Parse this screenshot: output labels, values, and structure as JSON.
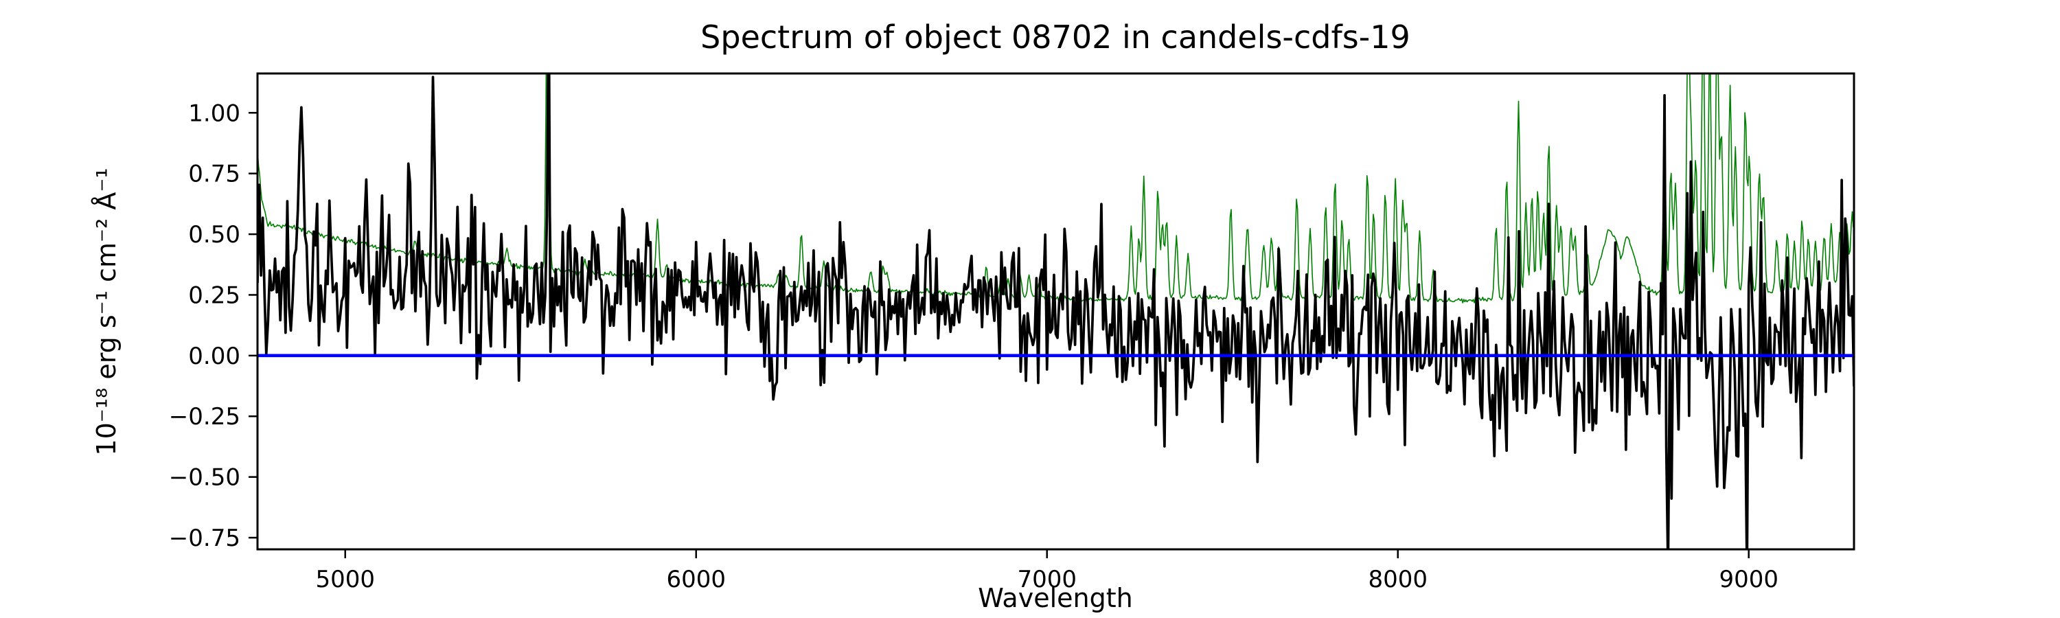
{
  "figure": {
    "background": "#ffffff"
  },
  "chart_data": {
    "type": "line",
    "title": "Spectrum of object 08702 in candels-cdfs-19",
    "xlabel": "Wavelength",
    "ylabel": "10⁻¹⁸ erg s⁻¹ cm⁻² Å⁻¹",
    "xlim": [
      4750,
      9300
    ],
    "ylim": [
      -0.798,
      1.162
    ],
    "xticks": [
      5000,
      6000,
      7000,
      8000,
      9000
    ],
    "xtick_labels": [
      "5000",
      "6000",
      "7000",
      "8000",
      "9000"
    ],
    "yticks": [
      -0.75,
      -0.5,
      -0.25,
      0.0,
      0.25,
      0.5,
      0.75,
      1.0
    ],
    "ytick_labels": [
      "−0.75",
      "−0.50",
      "−0.25",
      "0.00",
      "0.25",
      "0.50",
      "0.75",
      "1.00"
    ],
    "grid": false,
    "legend": null,
    "frame_color": "#000000",
    "background": "#ffffff",
    "series": [
      {
        "name": "sky-noise-spectrum",
        "kind": "sky-spectrum",
        "z": 1,
        "color": "#008000",
        "linewidth": 1.6,
        "sample_step": 3,
        "seed": 4102,
        "texture_noise": 0.005,
        "continuum": [
          [
            4750,
            0.84
          ],
          [
            4762,
            0.64
          ],
          [
            4780,
            0.54
          ],
          [
            4850,
            0.53
          ],
          [
            4950,
            0.49
          ],
          [
            5050,
            0.46
          ],
          [
            5150,
            0.43
          ],
          [
            5250,
            0.41
          ],
          [
            5350,
            0.39
          ],
          [
            5450,
            0.375
          ],
          [
            5550,
            0.36
          ],
          [
            5650,
            0.345
          ],
          [
            5750,
            0.335
          ],
          [
            5850,
            0.33
          ],
          [
            5950,
            0.315
          ],
          [
            6050,
            0.3
          ],
          [
            6150,
            0.29
          ],
          [
            6250,
            0.285
          ],
          [
            6350,
            0.28
          ],
          [
            6450,
            0.27
          ],
          [
            6550,
            0.265
          ],
          [
            6650,
            0.26
          ],
          [
            6750,
            0.255
          ],
          [
            6850,
            0.245
          ],
          [
            6950,
            0.24
          ],
          [
            7050,
            0.235
          ],
          [
            7150,
            0.23
          ],
          [
            7250,
            0.235
          ],
          [
            7350,
            0.24
          ],
          [
            7450,
            0.24
          ],
          [
            7550,
            0.235
          ],
          [
            7650,
            0.235
          ],
          [
            7750,
            0.24
          ],
          [
            7850,
            0.24
          ],
          [
            7950,
            0.235
          ],
          [
            8050,
            0.23
          ],
          [
            8150,
            0.225
          ],
          [
            8250,
            0.23
          ],
          [
            8350,
            0.235
          ],
          [
            8450,
            0.24
          ],
          [
            8520,
            0.255
          ],
          [
            8560,
            0.3
          ],
          [
            8600,
            0.52
          ],
          [
            8622,
            0.48
          ],
          [
            8636,
            0.4
          ],
          [
            8652,
            0.5
          ],
          [
            8668,
            0.44
          ],
          [
            8695,
            0.29
          ],
          [
            8725,
            0.26
          ],
          [
            8800,
            0.26
          ],
          [
            8900,
            0.27
          ],
          [
            9000,
            0.265
          ],
          [
            9100,
            0.26
          ],
          [
            9200,
            0.265
          ],
          [
            9300,
            0.34
          ]
        ],
        "emission_lines": [
          [
            5199,
            0.05,
            4
          ],
          [
            5461,
            0.07,
            4
          ],
          [
            5577,
            1.45,
            4
          ],
          [
            5683,
            0.05,
            4
          ],
          [
            5890,
            0.24,
            4
          ],
          [
            5917,
            0.06,
            4
          ],
          [
            6235,
            0.05,
            4
          ],
          [
            6257,
            0.05,
            4
          ],
          [
            6300,
            0.22,
            4
          ],
          [
            6364,
            0.12,
            4
          ],
          [
            6498,
            0.08,
            4
          ],
          [
            6533,
            0.1,
            4
          ],
          [
            6544,
            0.08,
            4
          ],
          [
            6827,
            0.12,
            4
          ],
          [
            6871,
            0.1,
            4
          ],
          [
            6889,
            0.08,
            4
          ],
          [
            6923,
            0.1,
            4
          ],
          [
            6949,
            0.09,
            4
          ],
          [
            6978,
            0.07,
            4
          ],
          [
            7240,
            0.3,
            4
          ],
          [
            7262,
            0.25,
            4
          ],
          [
            7276,
            0.5,
            4
          ],
          [
            7316,
            0.45,
            4
          ],
          [
            7329,
            0.3,
            4
          ],
          [
            7341,
            0.32,
            4
          ],
          [
            7369,
            0.25,
            4
          ],
          [
            7402,
            0.18,
            4
          ],
          [
            7524,
            0.38,
            4
          ],
          [
            7571,
            0.3,
            5
          ],
          [
            7618,
            0.22,
            5
          ],
          [
            7640,
            0.25,
            5
          ],
          [
            7661,
            0.22,
            4
          ],
          [
            7712,
            0.42,
            4
          ],
          [
            7750,
            0.28,
            4
          ],
          [
            7794,
            0.38,
            4
          ],
          [
            7821,
            0.48,
            4
          ],
          [
            7841,
            0.32,
            4
          ],
          [
            7860,
            0.25,
            4
          ],
          [
            7913,
            0.52,
            4
          ],
          [
            7931,
            0.35,
            4
          ],
          [
            7964,
            0.45,
            4
          ],
          [
            7993,
            0.5,
            4
          ],
          [
            8014,
            0.4,
            4
          ],
          [
            8025,
            0.32,
            4
          ],
          [
            8062,
            0.28,
            4
          ],
          [
            8101,
            0.12,
            4
          ],
          [
            8280,
            0.3,
            4
          ],
          [
            8310,
            0.5,
            4
          ],
          [
            8344,
            0.82,
            4
          ],
          [
            8365,
            0.4,
            4
          ],
          [
            8382,
            0.42,
            4
          ],
          [
            8399,
            0.45,
            4
          ],
          [
            8415,
            0.35,
            4
          ],
          [
            8430,
            0.65,
            4
          ],
          [
            8452,
            0.38,
            4
          ],
          [
            8465,
            0.3,
            4
          ],
          [
            8493,
            0.28,
            4
          ],
          [
            8505,
            0.24,
            4
          ],
          [
            8540,
            0.15,
            4
          ],
          [
            8760,
            0.55,
            4
          ],
          [
            8778,
            0.5,
            4
          ],
          [
            8791,
            0.45,
            4
          ],
          [
            8827,
            1.1,
            4
          ],
          [
            8836,
            0.6,
            4
          ],
          [
            8849,
            0.55,
            4
          ],
          [
            8870,
            1.15,
            4
          ],
          [
            8889,
            1.0,
            4
          ],
          [
            8910,
            1.15,
            4
          ],
          [
            8922,
            0.65,
            4
          ],
          [
            8947,
            0.85,
            4
          ],
          [
            8962,
            0.6,
            4
          ],
          [
            8990,
            0.75,
            4
          ],
          [
            9002,
            0.55,
            4
          ],
          [
            9030,
            0.5,
            4
          ],
          [
            9042,
            0.4,
            4
          ],
          [
            9080,
            0.22,
            4
          ],
          [
            9110,
            0.25,
            4
          ],
          [
            9130,
            0.2,
            4
          ],
          [
            9152,
            0.3,
            4
          ],
          [
            9170,
            0.22,
            4
          ],
          [
            9190,
            0.2,
            4
          ],
          [
            9215,
            0.22,
            4
          ],
          [
            9235,
            0.25,
            4
          ],
          [
            9260,
            0.2,
            4
          ],
          [
            9280,
            0.22,
            4
          ],
          [
            9295,
            0.25,
            4
          ]
        ]
      },
      {
        "name": "observed-flux-spectrum",
        "kind": "noisy-spectrum",
        "z": 2,
        "color": "#000000",
        "linewidth": 3.7,
        "sample_step": 5,
        "seed": 8702,
        "sky_noise_coupling": 0.25,
        "continuum": [
          [
            4750,
            0.35
          ],
          [
            4900,
            0.32
          ],
          [
            5100,
            0.31
          ],
          [
            5300,
            0.3
          ],
          [
            5500,
            0.28
          ],
          [
            5700,
            0.27
          ],
          [
            5900,
            0.255
          ],
          [
            6100,
            0.23
          ],
          [
            6300,
            0.21
          ],
          [
            6500,
            0.19
          ],
          [
            6700,
            0.18
          ],
          [
            6900,
            0.16
          ],
          [
            7100,
            0.13
          ],
          [
            7300,
            0.09
          ],
          [
            7500,
            0.07
          ],
          [
            7700,
            0.05
          ],
          [
            7900,
            0.04
          ],
          [
            8100,
            0.03
          ],
          [
            8300,
            0.03
          ],
          [
            8500,
            0.02
          ],
          [
            8700,
            0.01
          ],
          [
            8900,
            0.015
          ],
          [
            9100,
            0.04
          ],
          [
            9300,
            0.12
          ]
        ],
        "noise_sigma": [
          [
            4750,
            0.165
          ],
          [
            5000,
            0.16
          ],
          [
            5300,
            0.155
          ],
          [
            5600,
            0.14
          ],
          [
            6000,
            0.13
          ],
          [
            6400,
            0.125
          ],
          [
            6800,
            0.12
          ],
          [
            7200,
            0.125
          ],
          [
            7500,
            0.14
          ],
          [
            7800,
            0.155
          ],
          [
            8100,
            0.165
          ],
          [
            8400,
            0.185
          ],
          [
            8700,
            0.195
          ],
          [
            9000,
            0.205
          ],
          [
            9300,
            0.17
          ]
        ],
        "features": [
          [
            4757,
            0.28,
            3
          ],
          [
            4870,
            0.6,
            5
          ],
          [
            5058,
            0.33,
            4
          ],
          [
            5122,
            0.3,
            4
          ],
          [
            5250,
            0.76,
            5
          ],
          [
            5438,
            0.28,
            4
          ],
          [
            5640,
            0.26,
            5
          ],
          [
            5795,
            0.28,
            4
          ],
          [
            5862,
            0.32,
            4
          ],
          [
            6219,
            -0.5,
            5
          ],
          [
            6420,
            0.28,
            5
          ],
          [
            6660,
            0.28,
            5
          ],
          [
            7052,
            0.24,
            5
          ],
          [
            7880,
            -0.5,
            5
          ],
          [
            7905,
            0.3,
            4
          ],
          [
            8364,
            -0.6,
            5
          ],
          [
            8560,
            -0.45,
            5
          ],
          [
            8770,
            -0.68,
            5
          ],
          [
            8870,
            0.42,
            5
          ],
          [
            8911,
            -0.42,
            4
          ],
          [
            8993,
            -0.68,
            5
          ],
          [
            9150,
            -0.35,
            4
          ]
        ]
      },
      {
        "name": "zero-flux-line",
        "kind": "hline",
        "z": 3,
        "color": "#0000ff",
        "linewidth": 4.6,
        "y": 0.0
      }
    ]
  }
}
